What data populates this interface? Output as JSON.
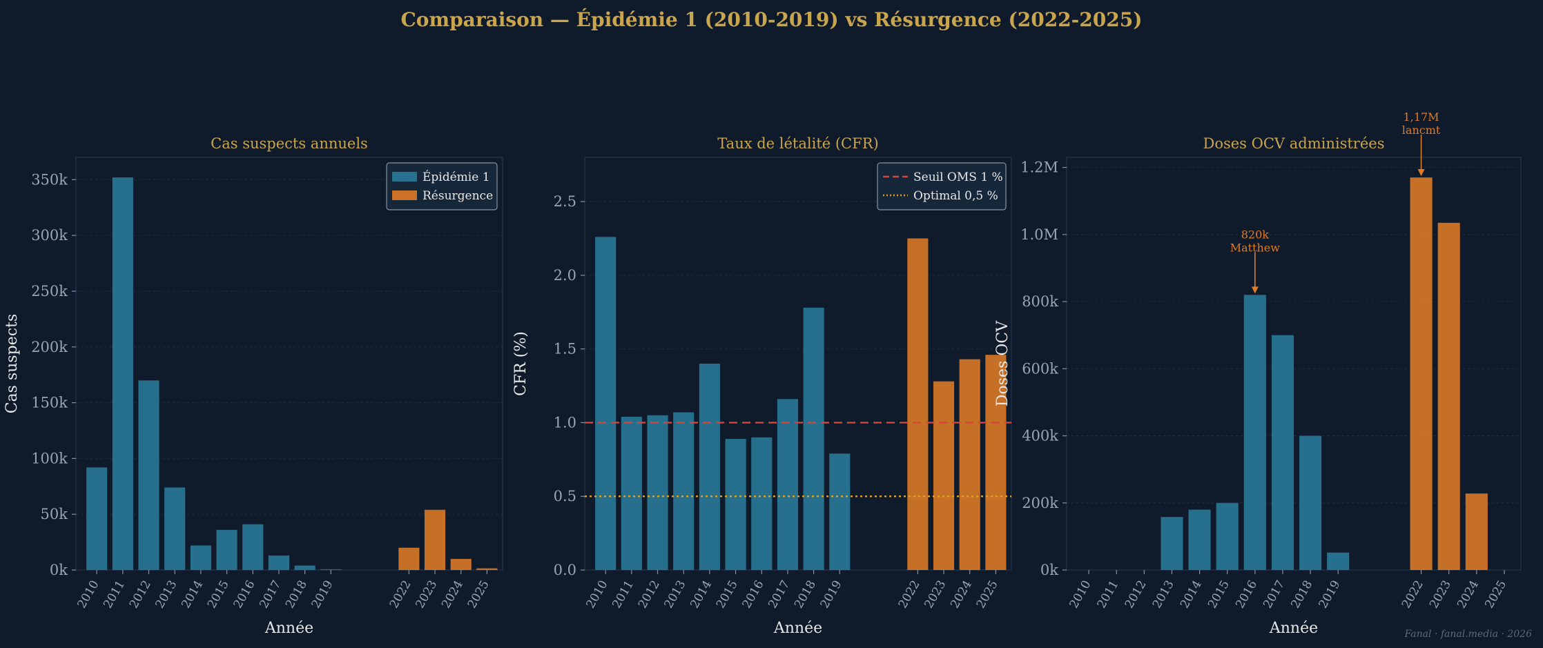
{
  "figure": {
    "title": "Comparaison — Épidémie 1 (2010-2019) vs Résurgence (2022-2025)",
    "credit": "Fanal · fanal.media · 2026",
    "colors": {
      "background": "#0f1b2b",
      "epidemie": "#2a7b9b",
      "resurgence": "#e07b26",
      "title": "#c9a54e",
      "oms_line": "#d9433a",
      "optimal_line": "#e0a020",
      "annotation": "#e07b26"
    }
  },
  "chart_data": [
    {
      "type": "bar",
      "title": "Cas suspects annuels",
      "xlabel": "Année",
      "ylabel": "Cas suspects",
      "ylim": [
        0,
        370000
      ],
      "yticks": [
        0,
        50000,
        100000,
        150000,
        200000,
        250000,
        300000,
        350000
      ],
      "ytick_labels": [
        "0k",
        "50k",
        "100k",
        "150k",
        "200k",
        "250k",
        "300k",
        "350k"
      ],
      "categories": [
        "2010",
        "2011",
        "2012",
        "2013",
        "2014",
        "2015",
        "2016",
        "2017",
        "2018",
        "2019",
        "2022",
        "2023",
        "2024",
        "2025"
      ],
      "series": [
        {
          "name": "Épidémie 1",
          "color": "#2a7b9b",
          "x": [
            "2010",
            "2011",
            "2012",
            "2013",
            "2014",
            "2015",
            "2016",
            "2017",
            "2018",
            "2019"
          ],
          "values": [
            92000,
            352000,
            170000,
            74000,
            22000,
            36000,
            41000,
            13000,
            4000,
            700
          ]
        },
        {
          "name": "Résurgence",
          "color": "#e07b26",
          "x": [
            "2022",
            "2023",
            "2024",
            "2025"
          ],
          "values": [
            20000,
            54000,
            10000,
            1500
          ]
        }
      ],
      "legend": "top-right",
      "grid": true
    },
    {
      "type": "bar",
      "title": "Taux de létalité (CFR)",
      "xlabel": "Année",
      "ylabel": "CFR (%)",
      "ylim": [
        0,
        2.8
      ],
      "yticks": [
        0,
        0.5,
        1.0,
        1.5,
        2.0,
        2.5
      ],
      "ytick_labels": [
        "0.0",
        "0.5",
        "1.0",
        "1.5",
        "2.0",
        "2.5"
      ],
      "categories": [
        "2010",
        "2011",
        "2012",
        "2013",
        "2014",
        "2015",
        "2016",
        "2017",
        "2018",
        "2019",
        "2022",
        "2023",
        "2024",
        "2025"
      ],
      "series": [
        {
          "name": "Épidémie 1",
          "color": "#2a7b9b",
          "x": [
            "2010",
            "2011",
            "2012",
            "2013",
            "2014",
            "2015",
            "2016",
            "2017",
            "2018",
            "2019"
          ],
          "values": [
            2.26,
            1.04,
            1.05,
            1.07,
            1.4,
            0.89,
            0.9,
            1.16,
            1.78,
            0.79
          ]
        },
        {
          "name": "Résurgence",
          "color": "#e07b26",
          "x": [
            "2022",
            "2023",
            "2024",
            "2025"
          ],
          "values": [
            2.25,
            1.28,
            1.43,
            1.46
          ]
        }
      ],
      "hlines": [
        {
          "label": "Seuil OMS 1 %",
          "y": 1.0,
          "style": "dashed",
          "color": "#d9433a"
        },
        {
          "label": "Optimal 0,5 %",
          "y": 0.5,
          "style": "dotted",
          "color": "#e0a020"
        }
      ],
      "legend": "top-right",
      "grid": true
    },
    {
      "type": "bar",
      "title": "Doses OCV administrées",
      "xlabel": "Année",
      "ylabel": "Doses OCV",
      "ylim": [
        0,
        1230000
      ],
      "yticks": [
        0,
        200000,
        400000,
        600000,
        800000,
        1000000,
        1200000
      ],
      "ytick_labels": [
        "0k",
        "200k",
        "400k",
        "600k",
        "800k",
        "1.0M",
        "1.2M"
      ],
      "xticks": [
        "2010",
        "2011",
        "2012",
        "2013",
        "2014",
        "2015",
        "2016",
        "2017",
        "2018",
        "2019",
        "2022",
        "2023",
        "2024",
        "2025"
      ],
      "series": [
        {
          "name": "Épidémie 1",
          "color": "#2a7b9b",
          "x": [
            "2010",
            "2011",
            "2012",
            "2013",
            "2014",
            "2015",
            "2016",
            "2017",
            "2018",
            "2019"
          ],
          "values": [
            0,
            0,
            0,
            158000,
            180000,
            200000,
            820000,
            700000,
            400000,
            52000
          ]
        },
        {
          "name": "Résurgence",
          "color": "#e07b26",
          "x": [
            "2022",
            "2023",
            "2024",
            "2025"
          ],
          "values": [
            1170000,
            1035000,
            228000,
            0
          ]
        }
      ],
      "annotations": [
        {
          "x": "2016",
          "value": 820000,
          "lines": [
            "820k",
            "Matthew"
          ]
        },
        {
          "x": "2022",
          "value": 1170000,
          "lines": [
            "1,17M",
            "lancmt"
          ]
        }
      ],
      "grid": true
    }
  ]
}
